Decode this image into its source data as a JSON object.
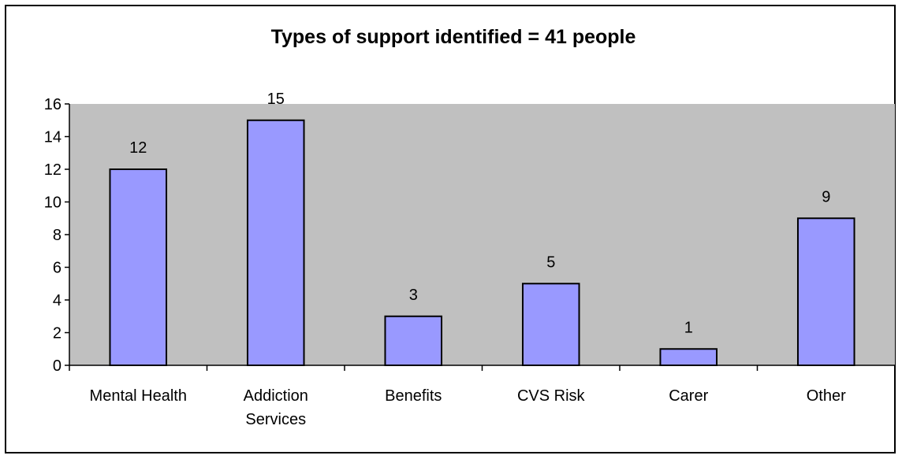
{
  "chart_data": {
    "type": "bar",
    "title": "Types of support identified = 41 people",
    "xlabel": "",
    "ylabel": "",
    "categories": [
      [
        "Mental Health"
      ],
      [
        "Addiction",
        "Services"
      ],
      [
        "Benefits"
      ],
      [
        "CVS Risk"
      ],
      [
        "Carer"
      ],
      [
        "Other"
      ]
    ],
    "values": [
      12,
      15,
      3,
      5,
      1,
      9
    ],
    "data_labels": [
      "12",
      "15",
      "3",
      "5",
      "1",
      "9"
    ],
    "ylim": [
      0,
      16
    ],
    "yticks": [
      0,
      2,
      4,
      6,
      8,
      10,
      12,
      14,
      16
    ],
    "ytick_labels": [
      "0",
      "2",
      "4",
      "6",
      "8",
      "10",
      "12",
      "14",
      "16"
    ],
    "grid": false,
    "legend": "none",
    "colors": {
      "bar_fill": "#9999ff",
      "bar_stroke": "#000000",
      "plot_background": "#c0c0c0"
    }
  }
}
